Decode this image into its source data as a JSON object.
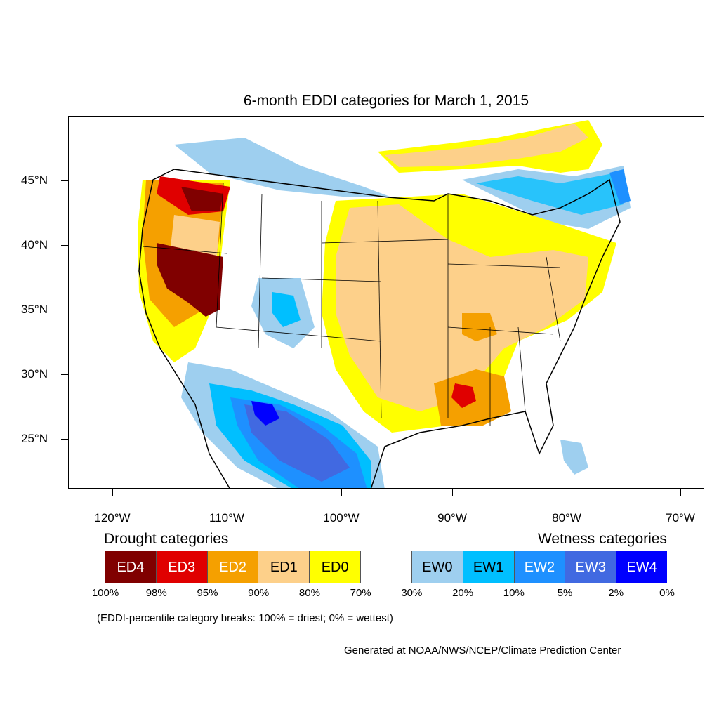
{
  "title": "6-month EDDI categories for March 1, 2015",
  "axes": {
    "lat_labels": [
      "45°N",
      "40°N",
      "35°N",
      "30°N",
      "25°N"
    ],
    "lon_labels": [
      "120°W",
      "110°W",
      "100°W",
      "90°W",
      "80°W",
      "70°W"
    ]
  },
  "legend": {
    "drought_heading": "Drought categories",
    "wetness_heading": "Wetness categories",
    "categories": [
      {
        "label": "ED4",
        "color": "#800000",
        "text_color": "#ffffff"
      },
      {
        "label": "ED3",
        "color": "#e00000",
        "text_color": "#ffffff"
      },
      {
        "label": "ED2",
        "color": "#f5a000",
        "text_color": "#ffffff"
      },
      {
        "label": "ED1",
        "color": "#fdd08a",
        "text_color": "#000000"
      },
      {
        "label": "ED0",
        "color": "#ffff00",
        "text_color": "#000000"
      },
      {
        "label": "",
        "color": "#ffffff",
        "text_color": "#000000"
      },
      {
        "label": "EW0",
        "color": "#9ecfef",
        "text_color": "#000000"
      },
      {
        "label": "EW1",
        "color": "#00bfff",
        "text_color": "#000000"
      },
      {
        "label": "EW2",
        "color": "#1e90ff",
        "text_color": "#ffffff"
      },
      {
        "label": "EW3",
        "color": "#4169e1",
        "text_color": "#ffffff"
      },
      {
        "label": "EW4",
        "color": "#0000ff",
        "text_color": "#ffffff"
      }
    ],
    "percentiles": [
      "100%",
      "98%",
      "95%",
      "90%",
      "80%",
      "70%",
      "30%",
      "20%",
      "10%",
      "5%",
      "2%",
      "0%"
    ]
  },
  "note": "(EDDI-percentile category breaks: 100% = driest; 0% = wettest)",
  "credit": "Generated at NOAA/NWS/NCEP/Climate Prediction Center"
}
